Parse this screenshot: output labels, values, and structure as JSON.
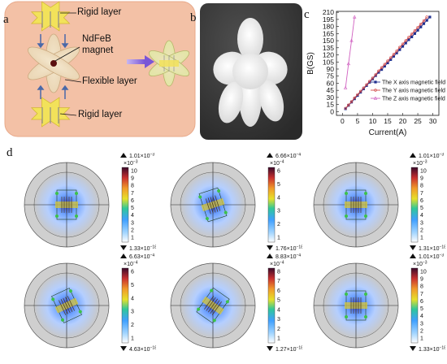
{
  "panel_a": {
    "letter": "a",
    "rigid_top": "Rigid layer",
    "magnet_line1": "NdFeB",
    "magnet_line2": "magnet",
    "flexible": "Flexible layer",
    "rigid_bottom": "Rigid layer",
    "background_color": "#f3c1a6"
  },
  "panel_b": {
    "letter": "b"
  },
  "panel_c": {
    "letter": "c"
  },
  "panel_d": {
    "letter": "d",
    "sims": [
      {
        "max": "1.01×10",
        "max_exp": "−3",
        "scale": "×10",
        "scale_exp": "−3",
        "min": "1.33×10",
        "min_exp": "−18",
        "ticks": [
          "10",
          "9",
          "8",
          "7",
          "6",
          "5",
          "4",
          "3",
          "2",
          "1"
        ]
      },
      {
        "max": "6.66×10",
        "max_exp": "−4",
        "scale": "×10",
        "scale_exp": "−4",
        "min": "1.76×10",
        "min_exp": "−18",
        "ticks": [
          "6",
          "5",
          "4",
          "3",
          "2",
          "1"
        ]
      },
      {
        "max": "1.01×10",
        "max_exp": "−3",
        "scale": "×10",
        "scale_exp": "−3",
        "min": "1.31×10",
        "min_exp": "−18",
        "ticks": [
          "10",
          "9",
          "8",
          "7",
          "6",
          "5",
          "4",
          "3",
          "2",
          "1"
        ]
      },
      {
        "max": "6.63×10",
        "max_exp": "−4",
        "scale": "×10",
        "scale_exp": "−4",
        "min": "4.63×10",
        "min_exp": "−18",
        "ticks": [
          "6",
          "5",
          "4",
          "3",
          "2",
          "1"
        ]
      },
      {
        "max": "8.83×10",
        "max_exp": "−4",
        "scale": "×10",
        "scale_exp": "−4",
        "min": "1.27×10",
        "min_exp": "−18",
        "ticks": [
          "8",
          "7",
          "6",
          "5",
          "4",
          "3",
          "2",
          "1"
        ]
      },
      {
        "max": "1.01×10",
        "max_exp": "−3",
        "scale": "×10",
        "scale_exp": "−3",
        "min": "1.33×10",
        "min_exp": "−18",
        "ticks": [
          "10",
          "9",
          "8",
          "7",
          "6",
          "5",
          "4",
          "3",
          "2",
          "1"
        ]
      }
    ]
  },
  "chart_data": {
    "type": "line",
    "xlabel": "Current(A)",
    "ylabel": "B(GS)",
    "xlim": [
      -2,
      32
    ],
    "ylim": [
      -8,
      212
    ],
    "xticks": [
      0,
      5,
      10,
      15,
      20,
      25,
      30
    ],
    "yticks": [
      0,
      15,
      30,
      45,
      60,
      75,
      90,
      105,
      120,
      135,
      150,
      165,
      180,
      195,
      210
    ],
    "legend_position": "bottom-right",
    "series": [
      {
        "name": "The X axis magnetic field",
        "color": "#1f2f8f",
        "marker": "square",
        "x": [
          1,
          2,
          3,
          4,
          5,
          6,
          7,
          8,
          9,
          10,
          11,
          12,
          13,
          14,
          15,
          16,
          17,
          18,
          19,
          20,
          21,
          22,
          23,
          24,
          25,
          26,
          27,
          28,
          29
        ],
        "y": [
          6,
          13,
          20,
          27,
          34,
          41,
          48,
          55,
          62,
          69,
          76,
          83,
          89,
          96,
          103,
          110,
          117,
          124,
          131,
          138,
          145,
          152,
          158,
          165,
          172,
          179,
          186,
          193,
          200
        ]
      },
      {
        "name": "The Y axis magnetic field",
        "color": "#d04848",
        "marker": "circle",
        "x": [
          1,
          2,
          3,
          4,
          5,
          6,
          7,
          8,
          9,
          10,
          11,
          12,
          13,
          14,
          15,
          16,
          17,
          18,
          19,
          20,
          21,
          22,
          23,
          24,
          25,
          26,
          27,
          28
        ],
        "y": [
          7,
          14,
          21,
          29,
          36,
          43,
          50,
          57,
          64,
          71,
          78,
          86,
          93,
          100,
          107,
          114,
          121,
          128,
          136,
          143,
          150,
          157,
          164,
          171,
          178,
          185,
          192,
          200
        ]
      },
      {
        "name": "The Z axis magnetic field",
        "color": "#d060c0",
        "marker": "triangle",
        "x": [
          1,
          2,
          3,
          4
        ],
        "y": [
          50,
          101,
          150,
          200
        ]
      }
    ]
  }
}
